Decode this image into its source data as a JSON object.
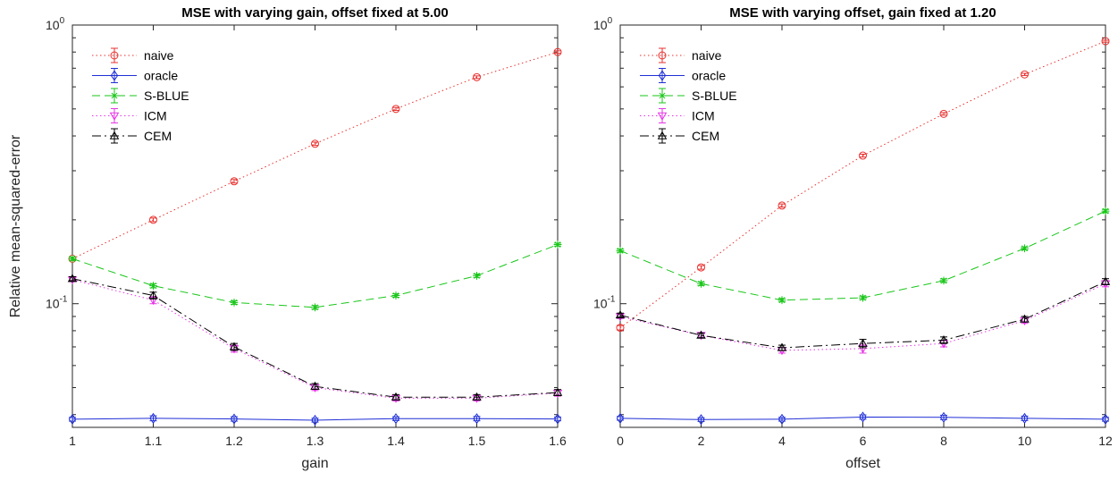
{
  "colors": {
    "naive": "#e8312f",
    "oracle": "#1f2fd6",
    "S-BLUE": "#19c619",
    "ICM": "#e636e6",
    "CEM": "#000000"
  },
  "shared": {
    "ylabel": "Relative mean-squared-error",
    "ytick_major": [
      {
        "v": 0.1,
        "base": "10",
        "exp": "-1"
      },
      {
        "v": 1,
        "base": "10",
        "exp": "0"
      }
    ],
    "legend": [
      {
        "name": "naive",
        "marker": "circle",
        "dash": "dotted"
      },
      {
        "name": "oracle",
        "marker": "diamond",
        "dash": "solid"
      },
      {
        "name": "S-BLUE",
        "marker": "star",
        "dash": "dashed"
      },
      {
        "name": "ICM",
        "marker": "triangle-down",
        "dash": "dotted"
      },
      {
        "name": "CEM",
        "marker": "triangle-up",
        "dash": "dashdot"
      }
    ]
  },
  "chart_data": [
    {
      "type": "line",
      "title": "MSE with varying gain, offset fixed at 5.00",
      "xlabel": "gain",
      "ylabel": "Relative mean-squared-error",
      "yscale": "log",
      "xlim": [
        1,
        1.6
      ],
      "ylim": [
        0.036,
        1
      ],
      "xticks": [
        1,
        1.1,
        1.2,
        1.3,
        1.4,
        1.5,
        1.6
      ],
      "xtick_labels": [
        "1",
        "1.1",
        "1.2",
        "1.3",
        "1.4",
        "1.5",
        "1.6"
      ],
      "legend_position": "top-left",
      "x": [
        1,
        1.1,
        1.2,
        1.3,
        1.4,
        1.5,
        1.6
      ],
      "series": [
        {
          "name": "naive",
          "values": [
            0.145,
            0.2,
            0.275,
            0.375,
            0.5,
            0.65,
            0.8
          ],
          "errors": [
            0.002,
            0.003,
            0.004,
            0.005,
            0.006,
            0.007,
            0.008
          ]
        },
        {
          "name": "oracle",
          "values": [
            0.0385,
            0.0388,
            0.0386,
            0.0382,
            0.0387,
            0.0387,
            0.0386
          ],
          "errors": [
            0.0006,
            0.0008,
            0.0007,
            0.0006,
            0.0006,
            0.0007,
            0.0006
          ]
        },
        {
          "name": "S-BLUE",
          "values": [
            0.145,
            0.116,
            0.101,
            0.097,
            0.107,
            0.126,
            0.163
          ],
          "errors": [
            0.002,
            0.002,
            0.0015,
            0.0015,
            0.0015,
            0.0018,
            0.002
          ]
        },
        {
          "name": "ICM",
          "values": [
            0.122,
            0.103,
            0.069,
            0.05,
            0.0458,
            0.0458,
            0.0478
          ],
          "errors": [
            0.002,
            0.003,
            0.002,
            0.0012,
            0.001,
            0.001,
            0.0012
          ]
        },
        {
          "name": "CEM",
          "values": [
            0.123,
            0.107,
            0.07,
            0.0505,
            0.0462,
            0.0462,
            0.048
          ],
          "errors": [
            0.002,
            0.003,
            0.002,
            0.0012,
            0.001,
            0.001,
            0.0012
          ]
        }
      ]
    },
    {
      "type": "line",
      "title": "MSE with varying offset, gain fixed at 1.20",
      "xlabel": "offset",
      "ylabel": "",
      "yscale": "log",
      "xlim": [
        0,
        12
      ],
      "ylim": [
        0.036,
        1
      ],
      "xticks": [
        0,
        2,
        4,
        6,
        8,
        10,
        12
      ],
      "xtick_labels": [
        "0",
        "2",
        "4",
        "6",
        "8",
        "10",
        "12"
      ],
      "legend_position": "top-left",
      "x": [
        0,
        2,
        4,
        6,
        8,
        10,
        12
      ],
      "series": [
        {
          "name": "naive",
          "values": [
            0.082,
            0.135,
            0.225,
            0.34,
            0.48,
            0.665,
            0.875
          ],
          "errors": [
            0.0015,
            0.002,
            0.003,
            0.004,
            0.005,
            0.006,
            0.007
          ]
        },
        {
          "name": "oracle",
          "values": [
            0.0388,
            0.0384,
            0.0385,
            0.0392,
            0.0391,
            0.0388,
            0.0385
          ],
          "errors": [
            0.0006,
            0.0006,
            0.0006,
            0.0007,
            0.0007,
            0.0007,
            0.0006
          ]
        },
        {
          "name": "S-BLUE",
          "values": [
            0.155,
            0.118,
            0.103,
            0.105,
            0.121,
            0.158,
            0.215
          ],
          "errors": [
            0.002,
            0.0018,
            0.0015,
            0.0015,
            0.0018,
            0.002,
            0.003
          ]
        },
        {
          "name": "ICM",
          "values": [
            0.09,
            0.077,
            0.068,
            0.069,
            0.072,
            0.087,
            0.118
          ],
          "errors": [
            0.0015,
            0.0015,
            0.0015,
            0.0025,
            0.002,
            0.002,
            0.003
          ]
        },
        {
          "name": "CEM",
          "values": [
            0.091,
            0.077,
            0.0695,
            0.072,
            0.074,
            0.088,
            0.12
          ],
          "errors": [
            0.0015,
            0.0015,
            0.0015,
            0.0025,
            0.002,
            0.002,
            0.003
          ]
        }
      ]
    }
  ]
}
